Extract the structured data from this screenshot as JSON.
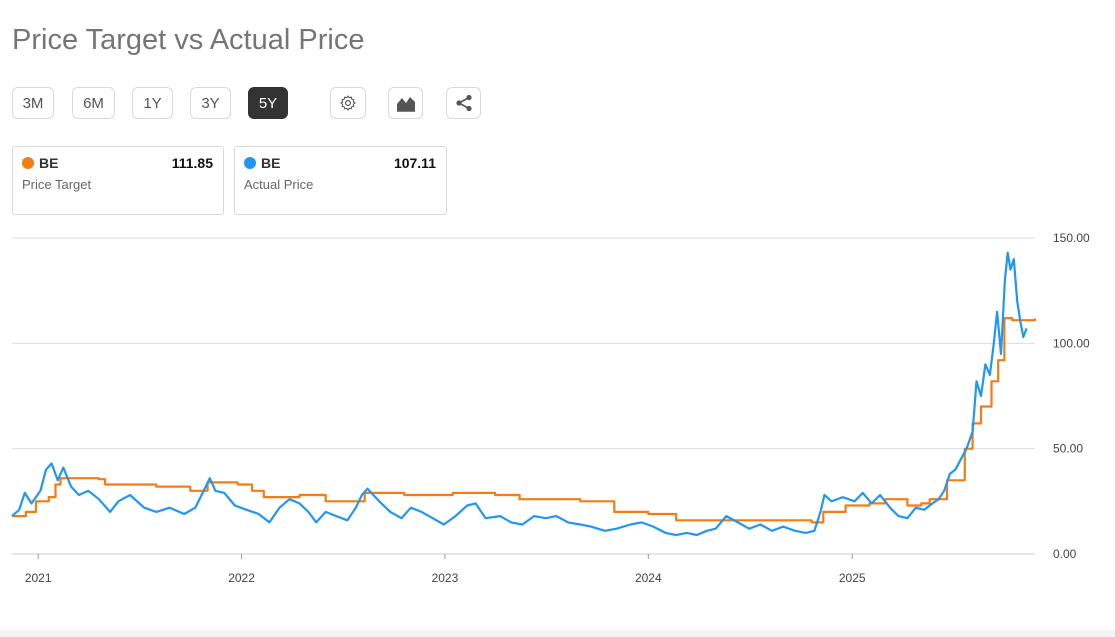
{
  "title": "Price Target vs Actual Price",
  "ranges": [
    {
      "label": "3M",
      "active": false
    },
    {
      "label": "6M",
      "active": false
    },
    {
      "label": "1Y",
      "active": false
    },
    {
      "label": "3Y",
      "active": false
    },
    {
      "label": "5Y",
      "active": true
    }
  ],
  "tools": {
    "settings_icon": "gear-icon",
    "chart_type_icon": "area-chart-icon",
    "share_icon": "share-icon"
  },
  "colors": {
    "price_target": "#f57c14",
    "actual_price": "#2196f3",
    "active_button": "#333333"
  },
  "legend": [
    {
      "ticker": "BE",
      "label": "Price Target",
      "value": "111.85"
    },
    {
      "ticker": "BE",
      "label": "Actual Price",
      "value": "107.11"
    }
  ],
  "chart_data": {
    "type": "line",
    "title": "Price Target vs Actual Price",
    "xlabel": "",
    "ylabel": "",
    "x_ticks": [
      "2021",
      "2022",
      "2023",
      "2024",
      "2025"
    ],
    "y_ticks": [
      "0.00",
      "50.00",
      "100.00",
      "150.00"
    ],
    "ylim": [
      0,
      150
    ],
    "xlim": [
      "2020-11-15",
      "2025-11-25"
    ],
    "grid": true,
    "y_axis_position": "right",
    "series": [
      {
        "name": "Price Target",
        "color": "#f57c14",
        "step": true,
        "points": [
          [
            "2020-11-15",
            18
          ],
          [
            "2020-12-10",
            20
          ],
          [
            "2020-12-28",
            25
          ],
          [
            "2021-01-20",
            27
          ],
          [
            "2021-02-01",
            33
          ],
          [
            "2021-02-10",
            36
          ],
          [
            "2021-04-20",
            35.5
          ],
          [
            "2021-05-01",
            33
          ],
          [
            "2021-07-01",
            33
          ],
          [
            "2021-08-01",
            32
          ],
          [
            "2021-10-01",
            30
          ],
          [
            "2021-11-01",
            34
          ],
          [
            "2021-12-25",
            33
          ],
          [
            "2022-01-20",
            30
          ],
          [
            "2022-02-10",
            27
          ],
          [
            "2022-04-15",
            28
          ],
          [
            "2022-06-01",
            25
          ],
          [
            "2022-08-10",
            29
          ],
          [
            "2022-10-20",
            28
          ],
          [
            "2023-01-15",
            29
          ],
          [
            "2023-04-01",
            28
          ],
          [
            "2023-05-15",
            26
          ],
          [
            "2023-09-01",
            25
          ],
          [
            "2023-11-01",
            20
          ],
          [
            "2024-01-01",
            19
          ],
          [
            "2024-02-20",
            16
          ],
          [
            "2024-06-01",
            16
          ],
          [
            "2024-10-20",
            15
          ],
          [
            "2024-11-10",
            20
          ],
          [
            "2024-12-20",
            23
          ],
          [
            "2025-02-01",
            24
          ],
          [
            "2025-03-01",
            26
          ],
          [
            "2025-04-10",
            23
          ],
          [
            "2025-05-05",
            24
          ],
          [
            "2025-05-20",
            26
          ],
          [
            "2025-06-20",
            35
          ],
          [
            "2025-07-22",
            50
          ],
          [
            "2025-08-05",
            62
          ],
          [
            "2025-08-20",
            70
          ],
          [
            "2025-09-08",
            82
          ],
          [
            "2025-09-20",
            92
          ],
          [
            "2025-10-01",
            112
          ],
          [
            "2025-10-15",
            111
          ],
          [
            "2025-11-25",
            111.85
          ]
        ]
      },
      {
        "name": "Actual Price",
        "color": "#2196f3",
        "step": false,
        "points": [
          [
            "2020-11-15",
            18
          ],
          [
            "2020-11-28",
            21
          ],
          [
            "2020-12-08",
            29
          ],
          [
            "2020-12-20",
            24
          ],
          [
            "2021-01-05",
            30
          ],
          [
            "2021-01-15",
            40
          ],
          [
            "2021-01-25",
            43
          ],
          [
            "2021-02-05",
            35
          ],
          [
            "2021-02-15",
            41
          ],
          [
            "2021-03-01",
            32
          ],
          [
            "2021-03-15",
            28
          ],
          [
            "2021-04-01",
            30
          ],
          [
            "2021-04-20",
            26
          ],
          [
            "2021-05-10",
            20
          ],
          [
            "2021-05-25",
            25
          ],
          [
            "2021-06-15",
            28
          ],
          [
            "2021-07-10",
            22
          ],
          [
            "2021-08-01",
            20
          ],
          [
            "2021-08-25",
            22
          ],
          [
            "2021-09-20",
            19
          ],
          [
            "2021-10-10",
            22
          ],
          [
            "2021-10-25",
            30
          ],
          [
            "2021-11-05",
            36
          ],
          [
            "2021-11-15",
            30
          ],
          [
            "2021-12-01",
            29
          ],
          [
            "2021-12-20",
            23
          ],
          [
            "2022-01-10",
            21
          ],
          [
            "2022-02-01",
            19
          ],
          [
            "2022-02-20",
            15
          ],
          [
            "2022-03-10",
            22
          ],
          [
            "2022-03-28",
            26
          ],
          [
            "2022-04-15",
            24
          ],
          [
            "2022-05-01",
            20
          ],
          [
            "2022-05-15",
            15
          ],
          [
            "2022-06-01",
            20
          ],
          [
            "2022-06-20",
            18
          ],
          [
            "2022-07-10",
            16
          ],
          [
            "2022-07-25",
            22
          ],
          [
            "2022-08-05",
            28
          ],
          [
            "2022-08-15",
            31
          ],
          [
            "2022-09-05",
            25
          ],
          [
            "2022-09-25",
            20
          ],
          [
            "2022-10-15",
            17
          ],
          [
            "2022-11-01",
            22
          ],
          [
            "2022-11-20",
            20
          ],
          [
            "2022-12-10",
            17
          ],
          [
            "2022-12-30",
            14
          ],
          [
            "2023-01-20",
            18
          ],
          [
            "2023-02-10",
            23
          ],
          [
            "2023-02-25",
            24
          ],
          [
            "2023-03-15",
            17
          ],
          [
            "2023-04-10",
            18
          ],
          [
            "2023-04-30",
            15
          ],
          [
            "2023-05-20",
            14
          ],
          [
            "2023-06-10",
            18
          ],
          [
            "2023-07-01",
            17
          ],
          [
            "2023-07-20",
            18
          ],
          [
            "2023-08-10",
            15
          ],
          [
            "2023-09-01",
            14
          ],
          [
            "2023-09-20",
            13
          ],
          [
            "2023-10-15",
            11
          ],
          [
            "2023-11-05",
            12
          ],
          [
            "2023-11-30",
            14
          ],
          [
            "2023-12-20",
            15
          ],
          [
            "2024-01-10",
            13
          ],
          [
            "2024-02-01",
            10
          ],
          [
            "2024-02-20",
            9
          ],
          [
            "2024-03-10",
            10
          ],
          [
            "2024-03-28",
            9
          ],
          [
            "2024-04-15",
            11
          ],
          [
            "2024-05-01",
            12
          ],
          [
            "2024-05-20",
            18
          ],
          [
            "2024-06-10",
            15
          ],
          [
            "2024-06-30",
            12
          ],
          [
            "2024-07-20",
            14
          ],
          [
            "2024-08-10",
            11
          ],
          [
            "2024-08-30",
            13
          ],
          [
            "2024-09-20",
            11
          ],
          [
            "2024-10-10",
            10
          ],
          [
            "2024-10-25",
            11
          ],
          [
            "2024-11-05",
            20
          ],
          [
            "2024-11-12",
            28
          ],
          [
            "2024-11-25",
            25
          ],
          [
            "2024-12-15",
            27
          ],
          [
            "2025-01-05",
            25
          ],
          [
            "2025-01-20",
            29
          ],
          [
            "2025-02-05",
            24
          ],
          [
            "2025-02-20",
            28
          ],
          [
            "2025-03-10",
            22
          ],
          [
            "2025-03-25",
            18
          ],
          [
            "2025-04-10",
            17
          ],
          [
            "2025-04-25",
            22
          ],
          [
            "2025-05-10",
            21
          ],
          [
            "2025-05-25",
            24
          ],
          [
            "2025-06-05",
            26
          ],
          [
            "2025-06-15",
            30
          ],
          [
            "2025-06-25",
            38
          ],
          [
            "2025-07-05",
            40
          ],
          [
            "2025-07-15",
            45
          ],
          [
            "2025-07-25",
            50
          ],
          [
            "2025-08-05",
            58
          ],
          [
            "2025-08-12",
            82
          ],
          [
            "2025-08-20",
            75
          ],
          [
            "2025-08-28",
            90
          ],
          [
            "2025-09-05",
            85
          ],
          [
            "2025-09-12",
            100
          ],
          [
            "2025-09-18",
            115
          ],
          [
            "2025-09-25",
            95
          ],
          [
            "2025-10-02",
            130
          ],
          [
            "2025-10-07",
            143
          ],
          [
            "2025-10-12",
            135
          ],
          [
            "2025-10-18",
            140
          ],
          [
            "2025-10-24",
            120
          ],
          [
            "2025-10-30",
            110
          ],
          [
            "2025-11-04",
            103
          ],
          [
            "2025-11-10",
            107.11
          ]
        ]
      }
    ]
  }
}
